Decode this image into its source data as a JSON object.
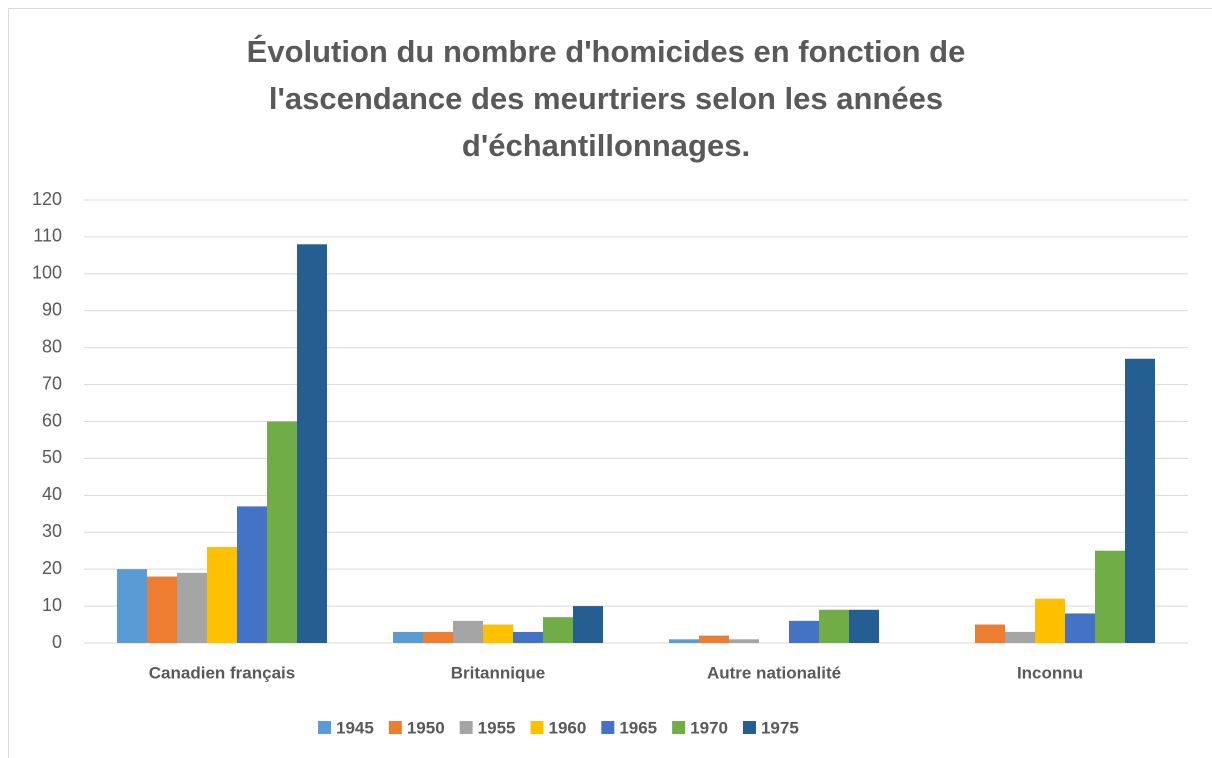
{
  "chart_data": {
    "type": "bar",
    "title": "Évolution du nombre d'homicides en fonction de l'ascendance des meurtriers selon les années d'échantillonnages.",
    "categories": [
      "Canadien français",
      "Britannique",
      "Autre nationalité",
      "Inconnu"
    ],
    "series": [
      {
        "name": "1945",
        "color": "#5b9bd5",
        "values": [
          20,
          3,
          1,
          0
        ]
      },
      {
        "name": "1950",
        "color": "#ed7d31",
        "values": [
          18,
          3,
          2,
          5
        ]
      },
      {
        "name": "1955",
        "color": "#a5a5a5",
        "values": [
          19,
          6,
          1,
          3
        ]
      },
      {
        "name": "1960",
        "color": "#ffc000",
        "values": [
          26,
          5,
          0,
          12
        ]
      },
      {
        "name": "1965",
        "color": "#4472c4",
        "values": [
          37,
          3,
          6,
          8
        ]
      },
      {
        "name": "1970",
        "color": "#70ad47",
        "values": [
          60,
          7,
          9,
          25
        ]
      },
      {
        "name": "1975",
        "color": "#255e91",
        "values": [
          108,
          10,
          9,
          77
        ]
      }
    ],
    "ylim": [
      0,
      120
    ],
    "yticks": [
      0,
      10,
      20,
      30,
      40,
      50,
      60,
      70,
      80,
      90,
      100,
      110,
      120
    ],
    "grid": true,
    "legend": "bottom"
  }
}
